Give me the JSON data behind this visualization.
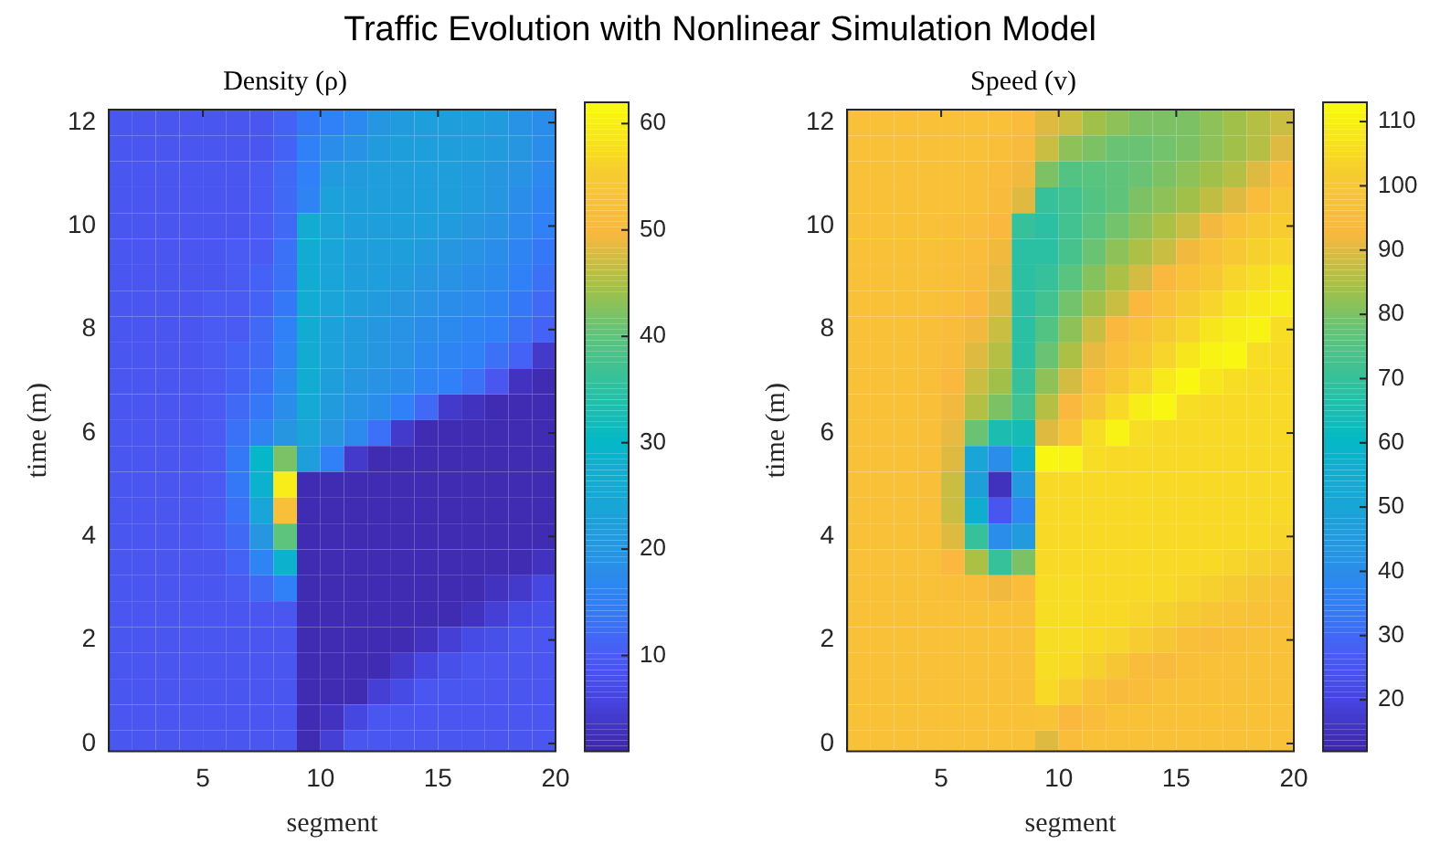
{
  "chart_data": [
    {
      "type": "heatmap",
      "title": "Density (ρ)",
      "xlabel": "segment",
      "ylabel": "time (m)",
      "annotations": [
        "Traffic Evolution with Nonlinear Simulation Model"
      ],
      "x": [
        1.5,
        2.5,
        3.5,
        4.5,
        5.5,
        6.5,
        7.5,
        8.5,
        9.5,
        10.5,
        11.5,
        12.5,
        13.5,
        14.5,
        15.5,
        16.5,
        17.5,
        18.5,
        19.5
      ],
      "y": [
        12,
        11.5,
        11,
        10.5,
        10,
        9.5,
        9,
        8.5,
        8,
        7.5,
        7,
        6.5,
        6,
        5.5,
        5,
        4.5,
        4,
        3.5,
        3,
        2.5,
        2,
        1.5,
        1,
        0.5,
        0
      ],
      "xlim": [
        1,
        20
      ],
      "ylim": [
        -0.15,
        12.25
      ],
      "xticks": [
        5,
        10,
        15,
        20
      ],
      "yticks": [
        0,
        2,
        4,
        6,
        8,
        10,
        12
      ],
      "clim": [
        1,
        62
      ],
      "cticks": [
        10,
        20,
        30,
        40,
        50,
        60
      ],
      "cells": [
        [
          9,
          9,
          9,
          9,
          9,
          9,
          9,
          11,
          14,
          15,
          17,
          20,
          21,
          22,
          22,
          22,
          21,
          19,
          18
        ],
        [
          9,
          9,
          9,
          9,
          9,
          9,
          9,
          11,
          15,
          18,
          19,
          21,
          22,
          22,
          22,
          22,
          21,
          20,
          18
        ],
        [
          9,
          9,
          9,
          9,
          9,
          9,
          10,
          12,
          15,
          21,
          21,
          22,
          22,
          22,
          22,
          21,
          20,
          19,
          17
        ],
        [
          9,
          9,
          9,
          9,
          9,
          9,
          10,
          12,
          16,
          23,
          22,
          22,
          22,
          22,
          22,
          21,
          20,
          18,
          16
        ],
        [
          9,
          9,
          9,
          9,
          9,
          9,
          10,
          12,
          26,
          24,
          22,
          22,
          22,
          22,
          21,
          20,
          19,
          17,
          15
        ],
        [
          9,
          9,
          9,
          9,
          9,
          10,
          10,
          13,
          26,
          24,
          22,
          22,
          22,
          21,
          20,
          19,
          18,
          16,
          14
        ],
        [
          9,
          9,
          9,
          9,
          9,
          10,
          11,
          13,
          26,
          24,
          22,
          22,
          21,
          20,
          19,
          18,
          17,
          15,
          13
        ],
        [
          9,
          9,
          9,
          9,
          10,
          10,
          11,
          14,
          26,
          24,
          22,
          21,
          20,
          19,
          18,
          17,
          16,
          14,
          12
        ],
        [
          9,
          9,
          9,
          9,
          10,
          10,
          12,
          15,
          26,
          23,
          21,
          20,
          19,
          18,
          17,
          16,
          15,
          13,
          11
        ],
        [
          9,
          9,
          9,
          9,
          10,
          11,
          12,
          16,
          26,
          23,
          21,
          20,
          19,
          17,
          16,
          15,
          13,
          11,
          4
        ],
        [
          9,
          9,
          9,
          9,
          10,
          11,
          13,
          17,
          26,
          22,
          20,
          19,
          18,
          16,
          15,
          13,
          9,
          3,
          2
        ],
        [
          9,
          9,
          9,
          9,
          10,
          12,
          14,
          18,
          25,
          21,
          19,
          18,
          15,
          12,
          4,
          3,
          2,
          2,
          2
        ],
        [
          9,
          9,
          9,
          9,
          10,
          13,
          16,
          20,
          24,
          20,
          17,
          13,
          4,
          2,
          2,
          2,
          2,
          2,
          2
        ],
        [
          9,
          9,
          9,
          9,
          10,
          14,
          30,
          42,
          22,
          15,
          4,
          2,
          2,
          2,
          2,
          2,
          2,
          2,
          2
        ],
        [
          9,
          9,
          9,
          9,
          10,
          14,
          28,
          60,
          2,
          2,
          2,
          2,
          2,
          2,
          2,
          2,
          2,
          2,
          2
        ],
        [
          9,
          9,
          9,
          9,
          10,
          13,
          24,
          52,
          2,
          2,
          2,
          2,
          2,
          2,
          2,
          2,
          2,
          2,
          2
        ],
        [
          9,
          9,
          9,
          9,
          10,
          12,
          20,
          40,
          2,
          2,
          2,
          2,
          2,
          2,
          2,
          2,
          2,
          2,
          2
        ],
        [
          9,
          9,
          9,
          9,
          9,
          11,
          16,
          28,
          2,
          2,
          2,
          2,
          2,
          2,
          2,
          2,
          2,
          2,
          3
        ],
        [
          9,
          9,
          9,
          9,
          9,
          10,
          12,
          15,
          2,
          2,
          2,
          2,
          2,
          2,
          2,
          2,
          3,
          4,
          6
        ],
        [
          9,
          9,
          9,
          9,
          9,
          9,
          9,
          9,
          2,
          2,
          2,
          2,
          2,
          2,
          2,
          3,
          5,
          7,
          8
        ],
        [
          9,
          9,
          9,
          9,
          9,
          9,
          9,
          9,
          2,
          2,
          2,
          2,
          2,
          3,
          5,
          7,
          8,
          9,
          9
        ],
        [
          9,
          9,
          9,
          9,
          9,
          9,
          9,
          9,
          2,
          2,
          2,
          2,
          4,
          6,
          8,
          9,
          9,
          9,
          9
        ],
        [
          9,
          9,
          9,
          9,
          9,
          9,
          9,
          9,
          2,
          2,
          2,
          5,
          7,
          9,
          9,
          9,
          9,
          9,
          9
        ],
        [
          9,
          9,
          9,
          9,
          9,
          9,
          9,
          9,
          2,
          3,
          6,
          9,
          9,
          9,
          9,
          9,
          9,
          9,
          9
        ],
        [
          9,
          9,
          9,
          9,
          9,
          9,
          9,
          9,
          2,
          5,
          9,
          9,
          9,
          9,
          9,
          9,
          9,
          9,
          9
        ]
      ]
    },
    {
      "type": "heatmap",
      "title": "Speed (v)",
      "xlabel": "segment",
      "ylabel": "time (m)",
      "x": [
        1.5,
        2.5,
        3.5,
        4.5,
        5.5,
        6.5,
        7.5,
        8.5,
        9.5,
        10.5,
        11.5,
        12.5,
        13.5,
        14.5,
        15.5,
        16.5,
        17.5,
        18.5,
        19.5
      ],
      "y": [
        12,
        11.5,
        11,
        10.5,
        10,
        9.5,
        9,
        8.5,
        8,
        7.5,
        7,
        6.5,
        6,
        5.5,
        5,
        4.5,
        4,
        3.5,
        3,
        2.5,
        2,
        1.5,
        1,
        0.5,
        0
      ],
      "xlim": [
        1,
        20
      ],
      "ylim": [
        -0.15,
        12.25
      ],
      "xticks": [
        5,
        10,
        15,
        20
      ],
      "yticks": [
        0,
        2,
        4,
        6,
        8,
        10,
        12
      ],
      "clim": [
        12,
        113
      ],
      "cticks": [
        20,
        30,
        40,
        50,
        60,
        70,
        80,
        90,
        100,
        110
      ],
      "cells": [
        [
          97,
          97,
          97,
          97,
          97,
          97,
          97,
          95,
          90,
          88,
          84,
          82,
          80,
          80,
          80,
          82,
          84,
          86,
          88
        ],
        [
          97,
          97,
          97,
          97,
          97,
          97,
          96,
          94,
          88,
          82,
          80,
          78,
          78,
          79,
          80,
          82,
          84,
          86,
          90
        ],
        [
          97,
          97,
          97,
          97,
          97,
          96,
          95,
          92,
          80,
          75,
          76,
          77,
          78,
          80,
          82,
          84,
          86,
          90,
          94
        ],
        [
          97,
          97,
          97,
          97,
          97,
          96,
          94,
          90,
          70,
          72,
          75,
          77,
          80,
          82,
          84,
          87,
          90,
          95,
          99
        ],
        [
          97,
          97,
          97,
          97,
          96,
          95,
          93,
          70,
          68,
          72,
          76,
          79,
          82,
          85,
          88,
          92,
          97,
          100,
          102
        ],
        [
          97,
          97,
          97,
          97,
          96,
          95,
          92,
          68,
          68,
          73,
          78,
          82,
          85,
          88,
          92,
          97,
          100,
          103,
          104
        ],
        [
          97,
          97,
          97,
          97,
          96,
          94,
          91,
          68,
          70,
          76,
          81,
          85,
          89,
          93,
          97,
          100,
          104,
          106,
          108
        ],
        [
          97,
          97,
          97,
          97,
          96,
          93,
          90,
          68,
          72,
          79,
          84,
          88,
          93,
          97,
          101,
          104,
          107,
          109,
          110
        ],
        [
          97,
          97,
          97,
          96,
          95,
          92,
          88,
          68,
          75,
          82,
          88,
          93,
          97,
          101,
          104,
          108,
          110,
          111,
          106
        ],
        [
          97,
          97,
          97,
          96,
          94,
          90,
          86,
          68,
          78,
          85,
          91,
          96,
          100,
          104,
          108,
          111,
          112,
          106,
          105
        ],
        [
          97,
          97,
          97,
          96,
          93,
          88,
          84,
          70,
          82,
          89,
          95,
          100,
          104,
          109,
          112,
          108,
          106,
          105,
          105
        ],
        [
          97,
          97,
          97,
          96,
          92,
          86,
          80,
          72,
          86,
          93,
          99,
          105,
          110,
          112,
          106,
          105,
          105,
          105,
          105
        ],
        [
          97,
          97,
          97,
          96,
          91,
          78,
          65,
          64,
          90,
          98,
          106,
          111,
          106,
          105,
          105,
          105,
          105,
          105,
          105
        ],
        [
          97,
          97,
          97,
          96,
          90,
          50,
          40,
          55,
          112,
          111,
          106,
          105,
          105,
          105,
          105,
          105,
          105,
          105,
          105
        ],
        [
          97,
          97,
          97,
          96,
          88,
          48,
          15,
          45,
          105,
          105,
          105,
          105,
          105,
          105,
          105,
          105,
          105,
          105,
          105
        ],
        [
          97,
          97,
          97,
          96,
          88,
          55,
          25,
          38,
          105,
          105,
          105,
          105,
          105,
          105,
          105,
          105,
          105,
          105,
          105
        ],
        [
          97,
          97,
          97,
          96,
          90,
          70,
          40,
          45,
          105,
          105,
          105,
          105,
          105,
          105,
          105,
          105,
          105,
          105,
          104
        ],
        [
          97,
          97,
          97,
          97,
          93,
          85,
          70,
          80,
          105,
          105,
          105,
          105,
          105,
          105,
          105,
          105,
          104,
          103,
          102
        ],
        [
          97,
          97,
          97,
          97,
          96,
          95,
          92,
          95,
          106,
          106,
          105,
          105,
          105,
          105,
          104,
          103,
          101,
          99,
          98
        ],
        [
          97,
          97,
          97,
          97,
          97,
          97,
          97,
          97,
          106,
          106,
          105,
          105,
          104,
          103,
          101,
          99,
          98,
          97,
          97
        ],
        [
          97,
          97,
          97,
          97,
          97,
          97,
          97,
          97,
          106,
          106,
          105,
          104,
          102,
          99,
          96,
          95,
          96,
          97,
          97
        ],
        [
          97,
          97,
          97,
          97,
          97,
          97,
          97,
          97,
          106,
          105,
          103,
          99,
          95,
          94,
          96,
          97,
          97,
          97,
          97
        ],
        [
          97,
          97,
          97,
          97,
          97,
          97,
          97,
          97,
          105,
          102,
          97,
          94,
          95,
          97,
          97,
          97,
          97,
          97,
          97
        ],
        [
          97,
          97,
          97,
          97,
          97,
          97,
          97,
          97,
          98,
          93,
          95,
          97,
          97,
          97,
          97,
          97,
          97,
          97,
          97
        ],
        [
          97,
          97,
          97,
          97,
          97,
          97,
          97,
          97,
          90,
          95,
          97,
          97,
          97,
          97,
          97,
          97,
          97,
          97,
          97
        ]
      ]
    }
  ]
}
